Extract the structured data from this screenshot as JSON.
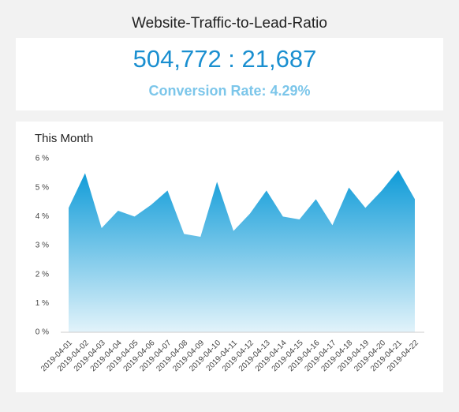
{
  "header": {
    "title": "Website-Traffic-to-Lead-Ratio"
  },
  "kpi": {
    "ratio": "504,772 : 21,687",
    "rate": "Conversion Rate: 4.29%"
  },
  "chart_data": {
    "type": "area",
    "title": "This Month",
    "categories": [
      "2019-04-01",
      "2019-04-02",
      "2019-04-03",
      "2019-04-04",
      "2019-04-05",
      "2019-04-06",
      "2019-04-07",
      "2019-04-08",
      "2019-04-09",
      "2019-04-10",
      "2019-04-11",
      "2019-04-12",
      "2019-04-13",
      "2019-04-14",
      "2019-04-15",
      "2019-04-16",
      "2019-04-17",
      "2019-04-18",
      "2019-04-19",
      "2019-04-20",
      "2019-04-21",
      "2019-04-22"
    ],
    "values": [
      4.3,
      5.5,
      3.6,
      4.2,
      4.0,
      4.4,
      4.9,
      3.4,
      3.3,
      5.2,
      3.5,
      4.1,
      4.9,
      4.0,
      3.9,
      4.6,
      3.7,
      5.0,
      4.3,
      4.9,
      5.6,
      4.6
    ],
    "color": "#0e9bd8",
    "ylim": [
      0,
      6
    ],
    "yticks": [
      {
        "value": 0,
        "label": "0 %"
      },
      {
        "value": 1,
        "label": "1 %"
      },
      {
        "value": 2,
        "label": "2 %"
      },
      {
        "value": 3,
        "label": "3 %"
      },
      {
        "value": 4,
        "label": "4 %"
      },
      {
        "value": 5,
        "label": "5 %"
      },
      {
        "value": 6,
        "label": "6 %"
      }
    ],
    "grid": false
  }
}
